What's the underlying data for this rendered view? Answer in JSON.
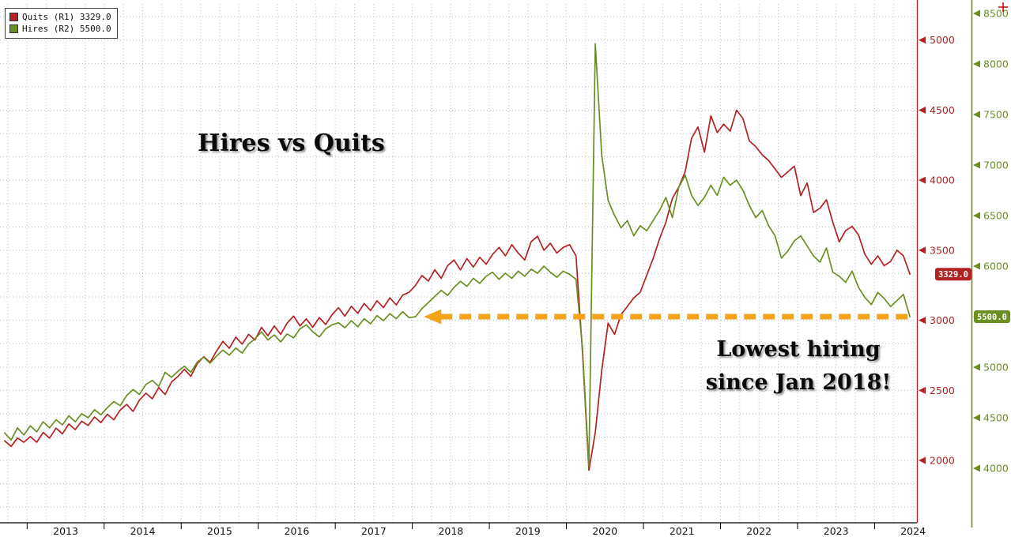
{
  "title": "Hires vs Quits",
  "legend": {
    "quits_label": "Quits (R1) 3329.0",
    "hires_label": "Hires (R2) 5500.0"
  },
  "annotation": {
    "line1": "Lowest hiring",
    "line2": "since Jan 2018!"
  },
  "chart_data": {
    "type": "line",
    "title": "Hires vs Quits",
    "frequency": "monthly",
    "x_start": {
      "year": 2012,
      "month": 9
    },
    "x_axis": {
      "years": [
        "2013",
        "2014",
        "2015",
        "2016",
        "2017",
        "2018",
        "2019",
        "2020",
        "2021",
        "2022",
        "2023",
        "2024"
      ],
      "xlim_decimal_years": [
        2012.648,
        2024.55
      ]
    },
    "right_axis_1": {
      "name": "Quits scale (R1)",
      "color": "#b22222",
      "ticks": [
        2000,
        2500,
        3000,
        3500,
        4000,
        4500,
        5000
      ],
      "ylim": [
        1555,
        5286
      ],
      "badge_value": 3329.0,
      "badge_label": "3329.0"
    },
    "right_axis_2": {
      "name": "Hires scale (R2)",
      "color": "#6b8e23",
      "ticks": [
        4000,
        4500,
        5000,
        5500,
        6000,
        6500,
        7000,
        7500,
        8000,
        8500
      ],
      "ylim": [
        3461,
        8633
      ],
      "badge_value": 5500.0,
      "badge_label": "5500.0"
    },
    "grid": {
      "color": "#bdbdbd",
      "style": "dotted"
    },
    "arrow": {
      "color": "#f5a21b",
      "value_on_right2": 5500,
      "from_decimal_year": 2024.45,
      "to_decimal_year": 2018.15
    },
    "series": [
      {
        "name": "Quits (R1)",
        "axis": "right1",
        "color": "#b22222",
        "last_value": 3329.0,
        "values": [
          2140,
          2100,
          2160,
          2130,
          2170,
          2130,
          2200,
          2160,
          2230,
          2190,
          2260,
          2220,
          2280,
          2250,
          2310,
          2270,
          2330,
          2290,
          2360,
          2400,
          2350,
          2430,
          2480,
          2440,
          2520,
          2470,
          2560,
          2600,
          2650,
          2600,
          2690,
          2740,
          2700,
          2780,
          2850,
          2800,
          2880,
          2830,
          2900,
          2860,
          2950,
          2890,
          2960,
          2900,
          2980,
          3030,
          2960,
          3010,
          2950,
          3020,
          2970,
          3040,
          3090,
          3030,
          3100,
          3050,
          3120,
          3070,
          3140,
          3090,
          3160,
          3110,
          3180,
          3200,
          3250,
          3320,
          3280,
          3360,
          3300,
          3390,
          3430,
          3360,
          3440,
          3380,
          3450,
          3400,
          3470,
          3520,
          3460,
          3540,
          3480,
          3430,
          3560,
          3600,
          3500,
          3550,
          3480,
          3520,
          3540,
          3460,
          2780,
          1930,
          2200,
          2640,
          2980,
          2900,
          3040,
          3100,
          3160,
          3200,
          3320,
          3440,
          3580,
          3700,
          3870,
          3950,
          4060,
          4300,
          4380,
          4200,
          4460,
          4340,
          4400,
          4350,
          4500,
          4440,
          4280,
          4240,
          4180,
          4140,
          4080,
          4020,
          4060,
          4100,
          3890,
          3980,
          3770,
          3800,
          3860,
          3700,
          3560,
          3640,
          3670,
          3610,
          3470,
          3400,
          3460,
          3390,
          3420,
          3500,
          3460,
          3329
        ]
      },
      {
        "name": "Hires (R2)",
        "axis": "right2",
        "color": "#6b8e23",
        "last_value": 5500.0,
        "values": [
          4350,
          4280,
          4400,
          4330,
          4420,
          4360,
          4460,
          4400,
          4480,
          4430,
          4520,
          4460,
          4540,
          4500,
          4580,
          4530,
          4600,
          4660,
          4620,
          4720,
          4780,
          4730,
          4830,
          4870,
          4810,
          4950,
          4900,
          4960,
          5010,
          4950,
          5050,
          5100,
          5040,
          5110,
          5170,
          5120,
          5190,
          5140,
          5230,
          5280,
          5350,
          5270,
          5320,
          5250,
          5330,
          5290,
          5380,
          5420,
          5350,
          5300,
          5380,
          5420,
          5440,
          5390,
          5460,
          5400,
          5480,
          5430,
          5510,
          5460,
          5530,
          5480,
          5550,
          5490,
          5500,
          5580,
          5640,
          5700,
          5760,
          5710,
          5790,
          5850,
          5800,
          5880,
          5830,
          5900,
          5940,
          5870,
          5930,
          5880,
          5950,
          5900,
          5970,
          5930,
          6000,
          5940,
          5890,
          5950,
          5920,
          5870,
          5200,
          4020,
          8200,
          7100,
          6650,
          6500,
          6380,
          6450,
          6300,
          6400,
          6350,
          6450,
          6550,
          6680,
          6480,
          6780,
          6900,
          6700,
          6600,
          6680,
          6800,
          6700,
          6880,
          6800,
          6850,
          6750,
          6600,
          6480,
          6550,
          6400,
          6300,
          6080,
          6150,
          6250,
          6300,
          6200,
          6100,
          6040,
          6180,
          5940,
          5900,
          5840,
          5950,
          5790,
          5690,
          5620,
          5740,
          5680,
          5600,
          5660,
          5720,
          5500
        ]
      }
    ]
  }
}
